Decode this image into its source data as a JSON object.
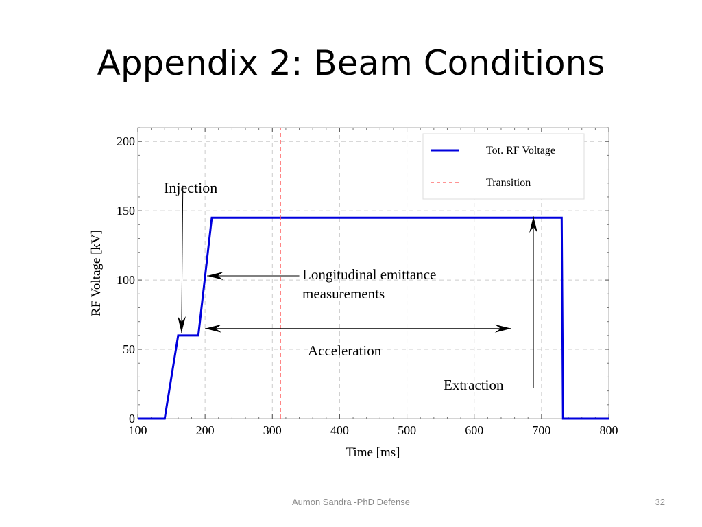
{
  "slide": {
    "title": "Appendix 2: Beam Conditions",
    "footer": "Aumon Sandra -PhD Defense",
    "page_number": "32"
  },
  "colors": {
    "voltage_line": "#0000dd",
    "transition_line": "#ff5555",
    "grid": "#cccccc"
  },
  "chart_data": {
    "type": "line",
    "xlabel": "Time [ms]",
    "ylabel": "RF Voltage [kV]",
    "xlim": [
      100,
      800
    ],
    "ylim": [
      0,
      210
    ],
    "x_ticks": [
      100,
      200,
      300,
      400,
      500,
      600,
      700,
      800
    ],
    "y_ticks": [
      0,
      50,
      100,
      150,
      200
    ],
    "grid": true,
    "legend_position": "top-right",
    "series": [
      {
        "name": "Tot. RF Voltage",
        "style": "solid",
        "x": [
          100,
          140,
          160,
          190,
          210,
          730,
          732,
          800
        ],
        "y": [
          0,
          0,
          60,
          60,
          145,
          145,
          0,
          0
        ]
      },
      {
        "name": "Transition",
        "style": "dashed",
        "x": [
          312,
          312
        ],
        "y": [
          0,
          210
        ]
      }
    ],
    "annotations": {
      "injection": {
        "text": "Injection",
        "from": [
          167,
          168
        ],
        "to": [
          165,
          62
        ]
      },
      "longitudinal": {
        "lines": [
          "Longitudinal emittance",
          "measurements"
        ],
        "from": [
          340,
          103
        ],
        "to": [
          203,
          103
        ]
      },
      "acceleration": {
        "text": "Acceleration",
        "from": [
          200,
          65
        ],
        "to": [
          655,
          65
        ]
      },
      "extraction": {
        "text": "Extraction",
        "from": [
          688,
          22
        ],
        "to": [
          688,
          146
        ]
      }
    }
  }
}
